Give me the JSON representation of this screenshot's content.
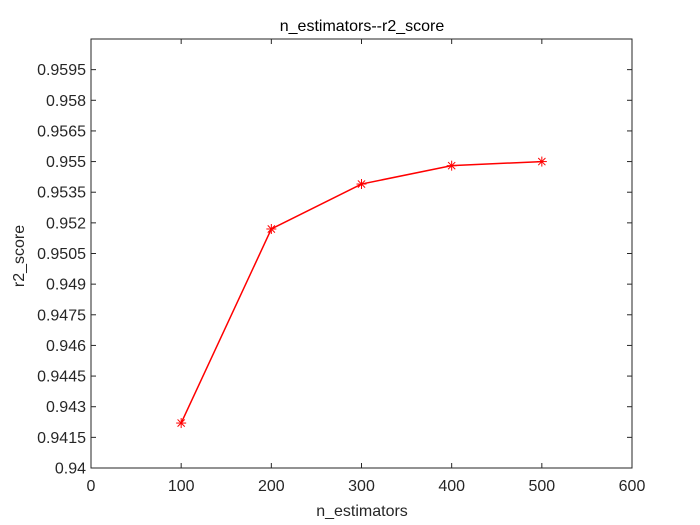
{
  "chart_data": {
    "type": "line",
    "title": "n_estimators--r2_score",
    "xlabel": "n_estimators",
    "ylabel": "r2_score",
    "xlim": [
      0,
      600
    ],
    "ylim": [
      0.94,
      0.961
    ],
    "xticks": [
      0,
      100,
      200,
      300,
      400,
      500,
      600
    ],
    "xtick_labels": [
      "0",
      "100",
      "200",
      "300",
      "400",
      "500",
      "600"
    ],
    "yticks": [
      0.94,
      0.9415,
      0.943,
      0.9445,
      0.946,
      0.9475,
      0.949,
      0.9505,
      0.952,
      0.9535,
      0.955,
      0.9565,
      0.958,
      0.9595
    ],
    "ytick_labels": [
      "0.94",
      "0.9415",
      "0.943",
      "0.9445",
      "0.946",
      "0.9475",
      "0.949",
      "0.9505",
      "0.952",
      "0.9535",
      "0.955",
      "0.9565",
      "0.958",
      "0.9595"
    ],
    "grid": false,
    "series": [
      {
        "name": "r2_score",
        "color": "#ff0000",
        "marker": "asterisk",
        "x": [
          100,
          200,
          300,
          400,
          500
        ],
        "y": [
          0.9422,
          0.9517,
          0.9539,
          0.9548,
          0.955
        ]
      }
    ]
  }
}
